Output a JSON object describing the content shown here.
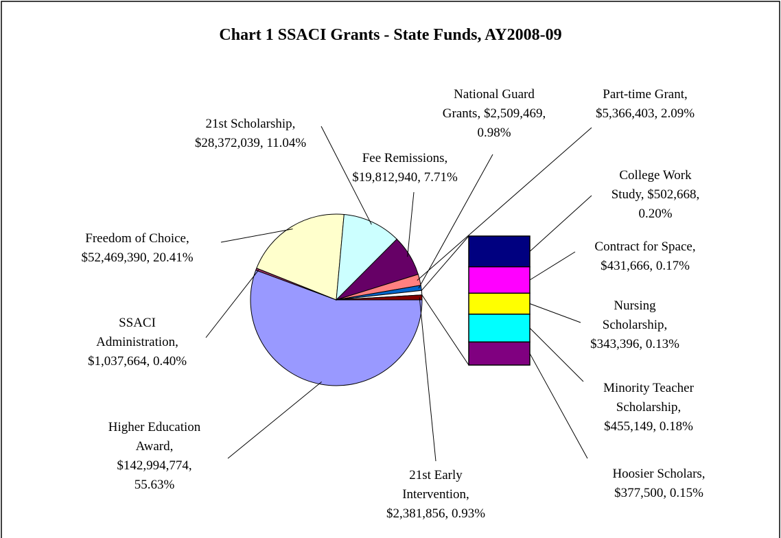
{
  "chart_data": {
    "type": "bar_of_pie",
    "title": "Chart 1 SSACI Grants - State Funds, AY2008-09",
    "slices": [
      {
        "label_lines": [
          "Higher Education",
          "Award,",
          "$142,994,774,",
          "55.63%"
        ],
        "value": 142994774,
        "color": "#9999ff"
      },
      {
        "label_lines": [
          "SSACI",
          "Administration,",
          "$1,037,664, 0.40%"
        ],
        "value": 1037664,
        "color": "#993366"
      },
      {
        "label_lines": [
          "Freedom of Choice,",
          "$52,469,390, 20.41%"
        ],
        "value": 52469390,
        "color": "#ffffcc"
      },
      {
        "label_lines": [
          "21st Scholarship,",
          "$28,372,039, 11.04%"
        ],
        "value": 28372039,
        "color": "#ccffff"
      },
      {
        "label_lines": [
          "Fee Remissions,",
          "$19,812,940, 7.71%"
        ],
        "value": 19812940,
        "color": "#660066"
      },
      {
        "label_lines": [
          "Part-time Grant,",
          "$5,366,403, 2.09%"
        ],
        "value": 5366403,
        "color": "#ff8080"
      },
      {
        "label_lines": [
          "National Guard",
          "Grants, $2,509,469,",
          "0.98%"
        ],
        "value": 2509469,
        "color": "#0066cc"
      },
      {
        "label_lines": [
          "21st Early",
          "Intervention,",
          "$2,381,856, 0.93%"
        ],
        "value": 2381856,
        "color": "#800000"
      }
    ],
    "bar": [
      {
        "label_lines": [
          "College Work",
          "Study, $502,668,",
          "0.20%"
        ],
        "value": 502668,
        "color": "#000080"
      },
      {
        "label_lines": [
          "Contract for Space,",
          "$431,666, 0.17%"
        ],
        "value": 431666,
        "color": "#ff00ff"
      },
      {
        "label_lines": [
          "Nursing",
          "Scholarship,",
          "$343,396, 0.13%"
        ],
        "value": 343396,
        "color": "#ffff00"
      },
      {
        "label_lines": [
          "Minority Teacher",
          "Scholarship,",
          "$455,149, 0.18%"
        ],
        "value": 455149,
        "color": "#00ffff"
      },
      {
        "label_lines": [
          "Hoosier Scholars,",
          "$377,500, 0.15%"
        ],
        "value": 377500,
        "color": "#800080"
      }
    ]
  }
}
